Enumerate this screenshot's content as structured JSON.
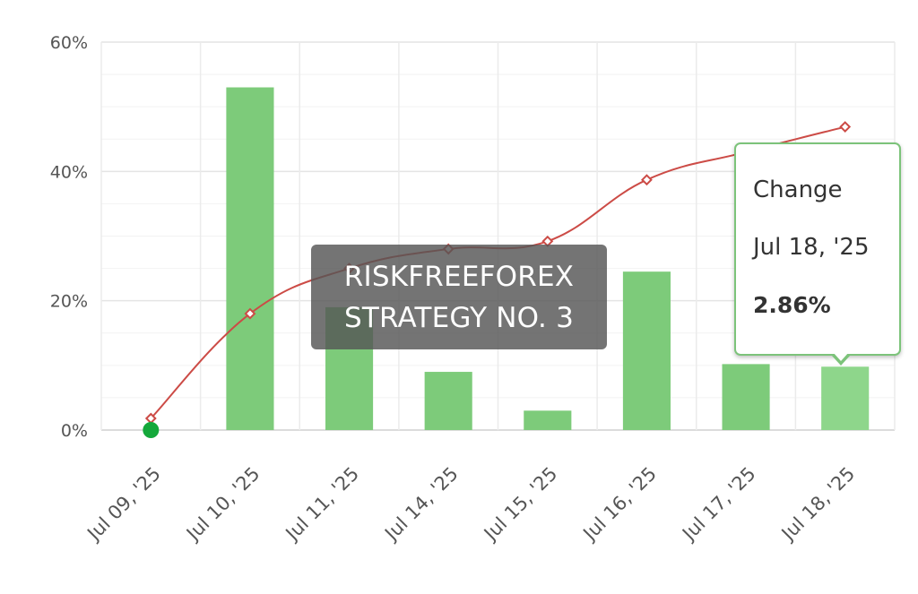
{
  "chart_data": {
    "type": "bar",
    "categories": [
      "Jul 09, '25",
      "Jul 10, '25",
      "Jul 11, '25",
      "Jul 14, '25",
      "Jul 15, '25",
      "Jul 16, '25",
      "Jul 17, '25",
      "Jul 18, '25"
    ],
    "series": [
      {
        "type": "bar",
        "values": [
          0,
          53.0,
          19.0,
          9.0,
          3.0,
          24.5,
          10.2,
          9.8
        ],
        "color": "#7dcb7a"
      },
      {
        "type": "line",
        "values": [
          1.8,
          18.0,
          25.0,
          28.0,
          29.2,
          38.7,
          43.0,
          46.9
        ],
        "color": "#cc4b46"
      }
    ],
    "yticks": [
      "0%",
      "20%",
      "40%",
      "60%"
    ],
    "ylim": [
      0,
      60
    ],
    "grid": true,
    "start_marker_color": "#14a83b",
    "highlight_index": 7
  },
  "watermark": {
    "line1": "RISKFREEFOREX",
    "line2": "STRATEGY NO. 3"
  },
  "tooltip": {
    "label": "Change",
    "date": "Jul 18, '25",
    "value": "2.86%"
  }
}
